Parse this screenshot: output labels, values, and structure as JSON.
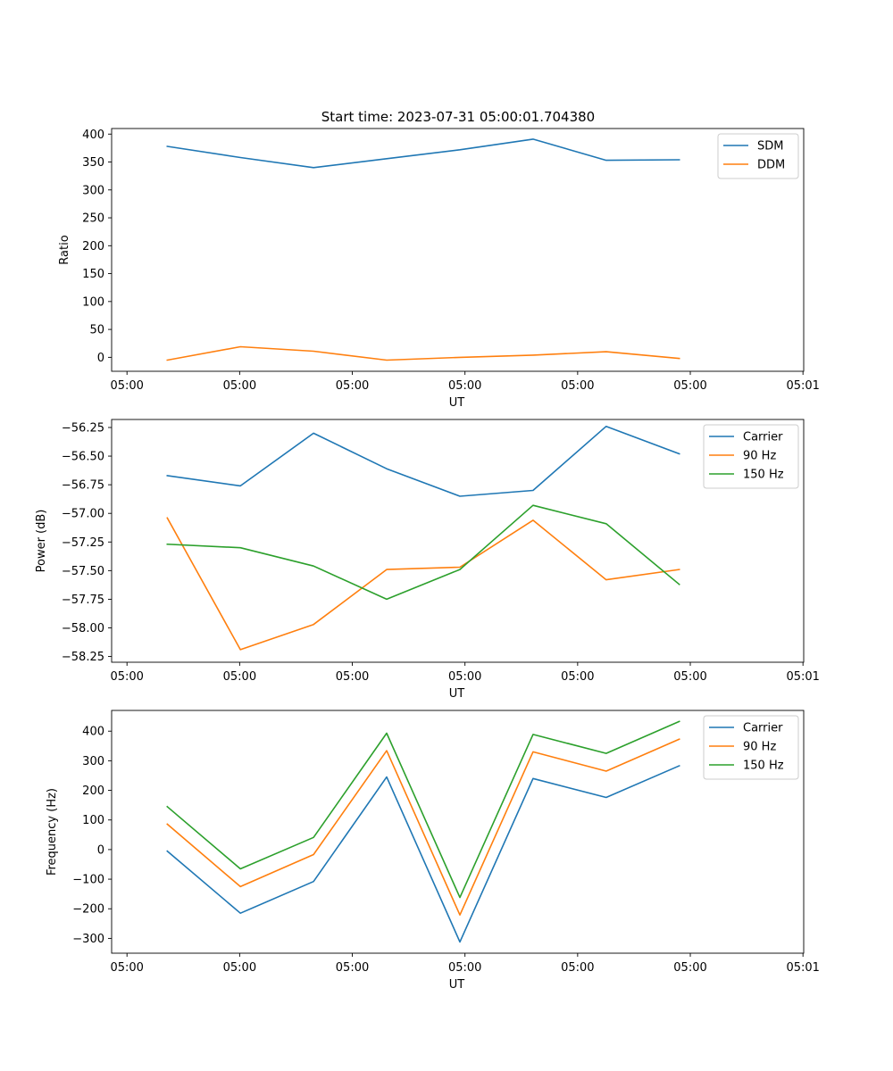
{
  "figure_title": "Start time: 2023-07-31 05:00:01.704380",
  "colors": {
    "blue": "#1f77b4",
    "orange": "#ff7f0e",
    "green": "#2ca02c"
  },
  "chart_data": [
    {
      "type": "line",
      "title": "Start time: 2023-07-31 05:00:01.704380",
      "xlabel": "UT",
      "ylabel": "Ratio",
      "x": [
        1,
        2,
        3,
        4,
        5,
        6,
        7,
        8
      ],
      "xlim": [
        0.24,
        9.7
      ],
      "xticks": [
        0.45,
        1.99,
        3.53,
        5.07,
        6.61,
        8.15,
        9.69
      ],
      "xtick_labels": [
        "05:00",
        "05:00",
        "05:00",
        "05:00",
        "05:00",
        "05:00",
        "05:01"
      ],
      "ylim": [
        -25,
        410
      ],
      "yticks": [
        0,
        50,
        100,
        150,
        200,
        250,
        300,
        350,
        400
      ],
      "ytick_labels": [
        "0",
        "50",
        "100",
        "150",
        "200",
        "250",
        "300",
        "350",
        "400"
      ],
      "legend": "upper right",
      "series": [
        {
          "name": "SDM",
          "color": "#1f77b4",
          "values": [
            378,
            358,
            340,
            356,
            372,
            391,
            353,
            354
          ]
        },
        {
          "name": "DDM",
          "color": "#ff7f0e",
          "values": [
            -5,
            19,
            11,
            -5,
            0,
            4,
            10,
            -2
          ]
        }
      ]
    },
    {
      "type": "line",
      "xlabel": "UT",
      "ylabel": "Power (dB)",
      "x": [
        1,
        2,
        3,
        4,
        5,
        6,
        7,
        8
      ],
      "xlim": [
        0.24,
        9.7
      ],
      "xticks": [
        0.45,
        1.99,
        3.53,
        5.07,
        6.61,
        8.15,
        9.69
      ],
      "xtick_labels": [
        "05:00",
        "05:00",
        "05:00",
        "05:00",
        "05:00",
        "05:00",
        "05:01"
      ],
      "ylim": [
        -58.3,
        -56.18
      ],
      "yticks": [
        -58.25,
        -58.0,
        -57.75,
        -57.5,
        -57.25,
        -57.0,
        -56.75,
        -56.5,
        -56.25
      ],
      "ytick_labels": [
        "−58.25",
        "−58.00",
        "−57.75",
        "−57.50",
        "−57.25",
        "−57.00",
        "−56.75",
        "−56.50",
        "−56.25"
      ],
      "legend": "upper right",
      "series": [
        {
          "name": "Carrier",
          "color": "#1f77b4",
          "values": [
            -56.67,
            -56.76,
            -56.3,
            -56.61,
            -56.85,
            -56.8,
            -56.24,
            -56.48
          ]
        },
        {
          "name": "90 Hz",
          "color": "#ff7f0e",
          "values": [
            -57.04,
            -58.19,
            -57.97,
            -57.49,
            -57.47,
            -57.06,
            -57.58,
            -57.49
          ]
        },
        {
          "name": "150 Hz",
          "color": "#2ca02c",
          "values": [
            -57.27,
            -57.3,
            -57.46,
            -57.75,
            -57.49,
            -56.93,
            -57.09,
            -57.62
          ]
        }
      ]
    },
    {
      "type": "line",
      "xlabel": "UT",
      "ylabel": "Frequency (Hz)",
      "x": [
        1,
        2,
        3,
        4,
        5,
        6,
        7,
        8
      ],
      "xlim": [
        0.24,
        9.7
      ],
      "xticks": [
        0.45,
        1.99,
        3.53,
        5.07,
        6.61,
        8.15,
        9.69
      ],
      "xtick_labels": [
        "05:00",
        "05:00",
        "05:00",
        "05:00",
        "05:00",
        "05:00",
        "05:01"
      ],
      "ylim": [
        -350,
        470
      ],
      "yticks": [
        -300,
        -200,
        -100,
        0,
        100,
        200,
        300,
        400
      ],
      "ytick_labels": [
        "−300",
        "−200",
        "−100",
        "0",
        "100",
        "200",
        "300",
        "400"
      ],
      "legend": "upper right",
      "series": [
        {
          "name": "Carrier",
          "color": "#1f77b4",
          "values": [
            -5,
            -215,
            -108,
            245,
            -312,
            240,
            176,
            283
          ]
        },
        {
          "name": "90 Hz",
          "color": "#ff7f0e",
          "values": [
            86,
            -125,
            -17,
            334,
            -221,
            330,
            265,
            373
          ]
        },
        {
          "name": "150 Hz",
          "color": "#2ca02c",
          "values": [
            145,
            -65,
            41,
            393,
            -162,
            389,
            325,
            433
          ]
        }
      ]
    }
  ]
}
